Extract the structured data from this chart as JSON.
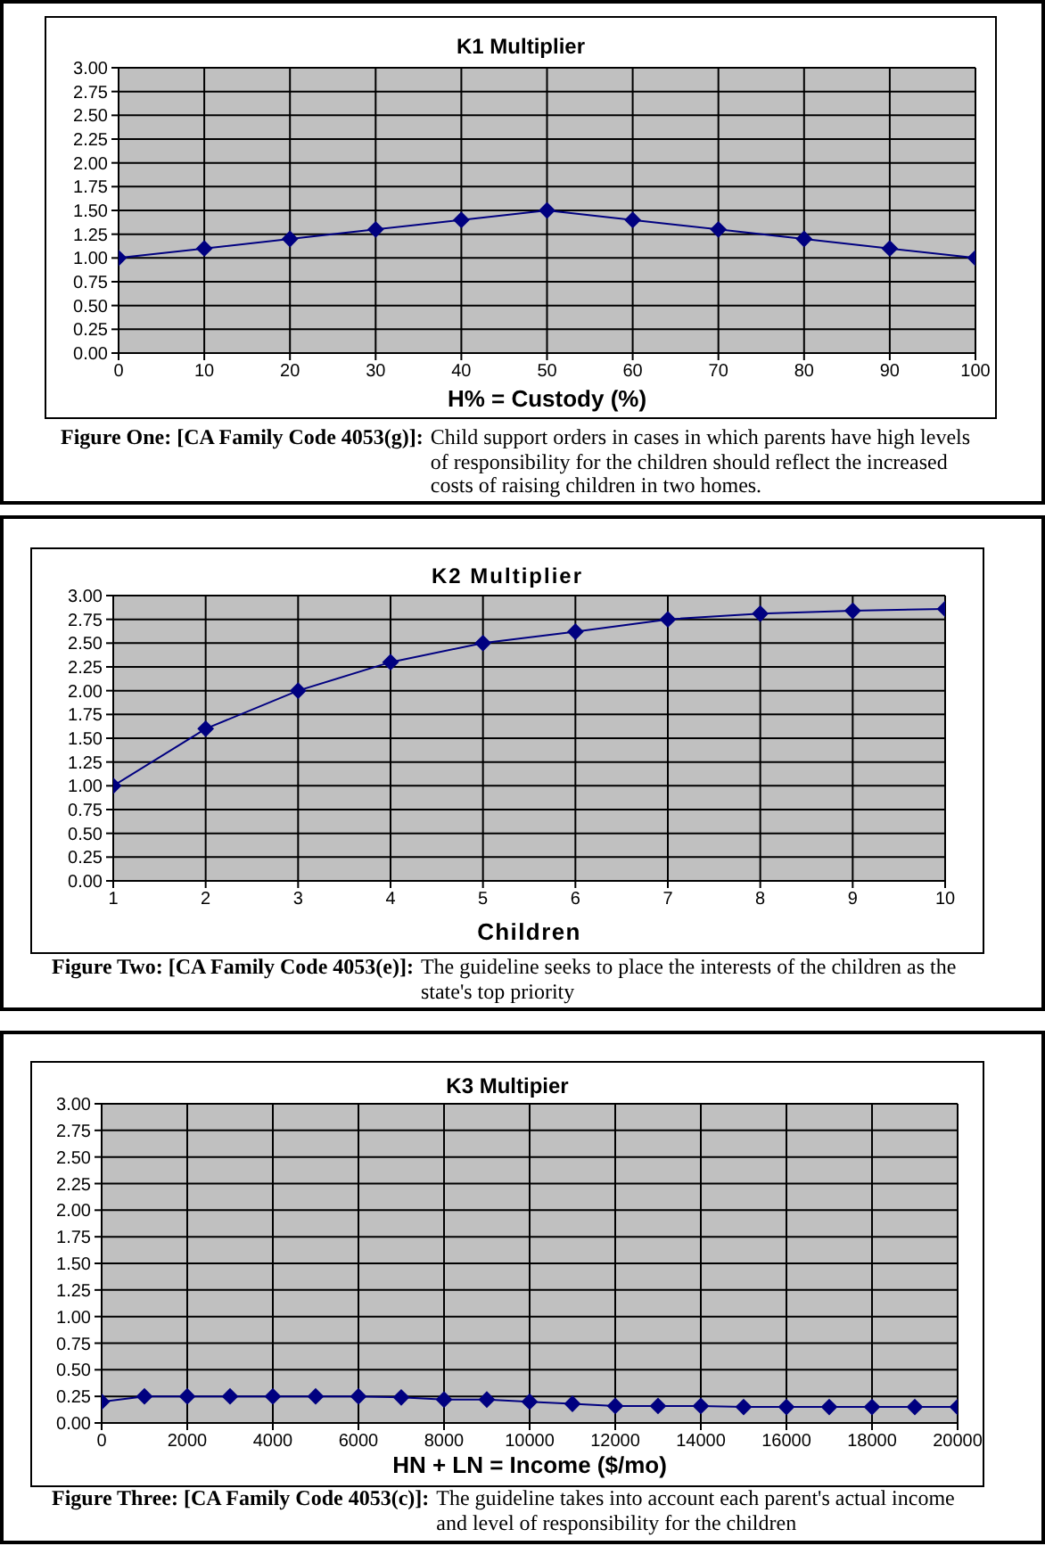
{
  "chart_data": [
    {
      "type": "line",
      "title": "K1 Multiplier",
      "xlabel": "H% = Custody (%)",
      "x": [
        0,
        10,
        20,
        30,
        40,
        50,
        60,
        70,
        80,
        90,
        100
      ],
      "series": [
        {
          "color": "#000080",
          "values": [
            1.0,
            1.1,
            1.2,
            1.3,
            1.4,
            1.5,
            1.4,
            1.3,
            1.2,
            1.1,
            1.0
          ]
        }
      ],
      "xlim": [
        0,
        100
      ],
      "xticks": [
        0,
        10,
        20,
        30,
        40,
        50,
        60,
        70,
        80,
        90,
        100
      ],
      "ylim": [
        0,
        3
      ],
      "yticks": [
        {
          "value": 0,
          "label": "0.00"
        },
        {
          "value": 0.25,
          "label": "0.25"
        },
        {
          "value": 0.5,
          "label": "0.50"
        },
        {
          "value": 0.75,
          "label": "0.75"
        },
        {
          "value": 1,
          "label": "1.00"
        },
        {
          "value": 1.25,
          "label": "1.25"
        },
        {
          "value": 1.5,
          "label": "1.50"
        },
        {
          "value": 1.75,
          "label": "1.75"
        },
        {
          "value": 2,
          "label": "2.00"
        },
        {
          "value": 2.25,
          "label": "2.25"
        },
        {
          "value": 2.5,
          "label": "2.50"
        },
        {
          "value": 2.75,
          "label": "2.75"
        },
        {
          "value": 3,
          "label": "3.00"
        }
      ],
      "grid": true,
      "marker": "diamond",
      "annotations": [
        "Figure One: [CA Family Code 4053(g)]:",
        "Child support orders in cases in which parents have high levels of responsibility for the children should reflect the increased costs of raising children in two homes."
      ]
    },
    {
      "type": "line",
      "title": "K2 Multiplier",
      "xlabel": "Children",
      "x": [
        1,
        2,
        3,
        4,
        5,
        6,
        7,
        8,
        9,
        10
      ],
      "series": [
        {
          "color": "#000080",
          "values": [
            1.0,
            1.6,
            2.0,
            2.3,
            2.5,
            2.62,
            2.75,
            2.81,
            2.84,
            2.86
          ]
        }
      ],
      "xlim": [
        1,
        10
      ],
      "xticks": [
        1,
        2,
        3,
        4,
        5,
        6,
        7,
        8,
        9,
        10
      ],
      "ylim": [
        0,
        3
      ],
      "yticks": [
        {
          "value": 0,
          "label": "0.00"
        },
        {
          "value": 0.25,
          "label": "0.25"
        },
        {
          "value": 0.5,
          "label": "0.50"
        },
        {
          "value": 0.75,
          "label": "0.75"
        },
        {
          "value": 1,
          "label": "1.00"
        },
        {
          "value": 1.25,
          "label": "1.25"
        },
        {
          "value": 1.5,
          "label": "1.50"
        },
        {
          "value": 1.75,
          "label": "1.75"
        },
        {
          "value": 2,
          "label": "2.00"
        },
        {
          "value": 2.25,
          "label": "2.25"
        },
        {
          "value": 2.5,
          "label": "2.50"
        },
        {
          "value": 2.75,
          "label": "2.75"
        },
        {
          "value": 3,
          "label": "3.00"
        }
      ],
      "grid": true,
      "marker": "diamond",
      "annotations": [
        "Figure Two: [CA Family Code 4053(e)]:",
        "The guideline seeks to place the interests of the children as the state's top priority"
      ]
    },
    {
      "type": "line",
      "title": "K3 Multipier",
      "xlabel": "HN + LN = Income ($/mo)",
      "x": [
        0,
        1000,
        2000,
        3000,
        4000,
        5000,
        6000,
        7000,
        8000,
        9000,
        10000,
        11000,
        12000,
        13000,
        14000,
        15000,
        16000,
        17000,
        18000,
        19000,
        20000
      ],
      "series": [
        {
          "color": "#000080",
          "values": [
            0.2,
            0.25,
            0.25,
            0.25,
            0.25,
            0.25,
            0.25,
            0.24,
            0.22,
            0.22,
            0.2,
            0.18,
            0.16,
            0.16,
            0.16,
            0.15,
            0.15,
            0.15,
            0.15,
            0.15,
            0.15
          ]
        }
      ],
      "xlim": [
        0,
        20000
      ],
      "xticks": [
        0,
        2000,
        4000,
        6000,
        8000,
        10000,
        12000,
        14000,
        16000,
        18000,
        20000
      ],
      "ylim": [
        0,
        3
      ],
      "yticks": [
        {
          "value": 0,
          "label": "0.00"
        },
        {
          "value": 0.25,
          "label": "0.25"
        },
        {
          "value": 0.5,
          "label": "0.50"
        },
        {
          "value": 0.75,
          "label": "0.75"
        },
        {
          "value": 1,
          "label": "1.00"
        },
        {
          "value": 1.25,
          "label": "1.25"
        },
        {
          "value": 1.5,
          "label": "1.50"
        },
        {
          "value": 1.75,
          "label": "1.75"
        },
        {
          "value": 2,
          "label": "2.00"
        },
        {
          "value": 2.25,
          "label": "2.25"
        },
        {
          "value": 2.5,
          "label": "2.50"
        },
        {
          "value": 2.75,
          "label": "2.75"
        },
        {
          "value": 3,
          "label": "3.00"
        }
      ],
      "grid": true,
      "marker": "diamond",
      "annotations": [
        "Figure Three: [CA Family Code 4053(c)]:",
        "The guideline takes into account each parent's actual income and level of responsibility for the children"
      ]
    }
  ]
}
